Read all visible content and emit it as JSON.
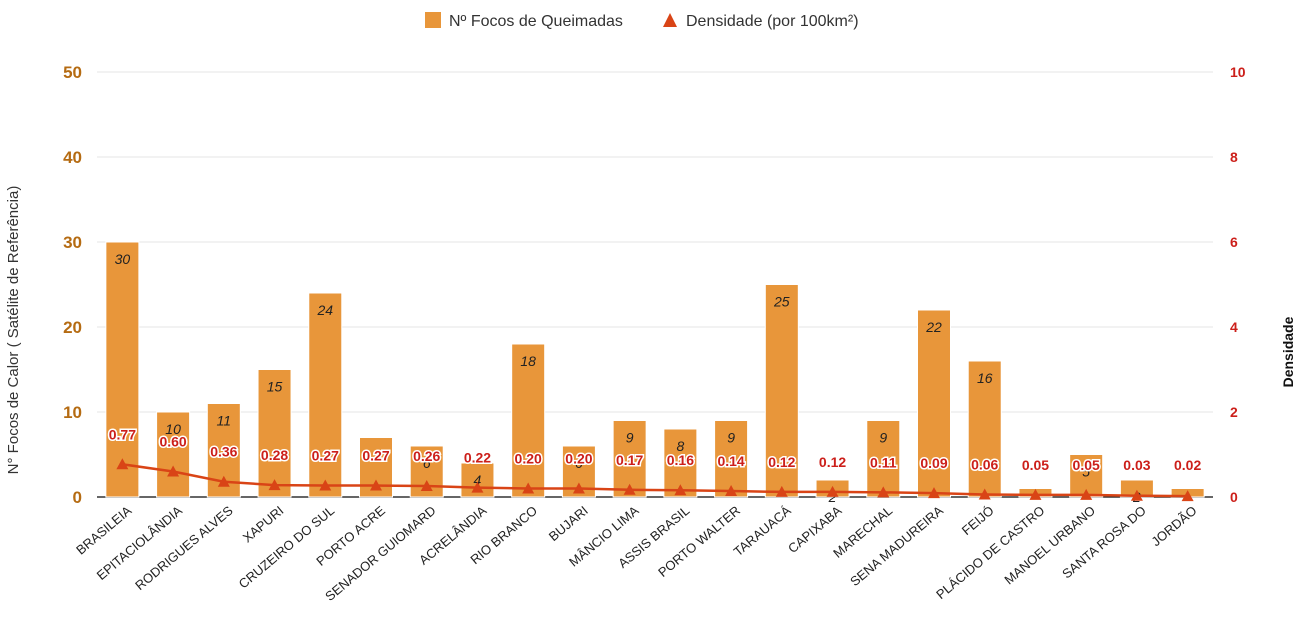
{
  "chart_data": {
    "type": "bar",
    "categories": [
      "BRASILEIA",
      "EPITACIOLÂNDIA",
      "RODRIGUES ALVES",
      "XAPURI",
      "CRUZEIRO DO SUL",
      "PORTO ACRE",
      "SENADOR GUIOMARD",
      "ACRELÂNDIA",
      "RIO BRANCO",
      "BUJARI",
      "MÂNCIO LIMA",
      "ASSIS BRASIL",
      "PORTO WALTER",
      "TARAUACÁ",
      "CAPIXABA",
      "MARECHAL",
      "SENA MADUREIRA",
      "FEIJÓ",
      "PLÁCIDO DE CASTRO",
      "MANOEL URBANO",
      "SANTA ROSA DO",
      "JORDÃO"
    ],
    "series": [
      {
        "name": "Nº Focos de Queimadas",
        "kind": "bar",
        "axis": "left",
        "color": "#e8963a",
        "values": [
          30,
          10,
          11,
          15,
          24,
          7,
          6,
          4,
          18,
          6,
          9,
          8,
          9,
          25,
          2,
          9,
          22,
          16,
          1,
          5,
          2,
          1
        ],
        "labels": [
          "30",
          "10",
          "11",
          "15",
          "24",
          "",
          "6",
          "4",
          "18",
          "6",
          "9",
          "8",
          "9",
          "25",
          "2",
          "9",
          "22",
          "16",
          "",
          "5",
          "2",
          ""
        ]
      },
      {
        "name": "Densidade (por 100km²)",
        "kind": "line",
        "axis": "right",
        "color": "#d94416",
        "marker": "triangle",
        "values": [
          0.77,
          0.6,
          0.36,
          0.28,
          0.27,
          0.27,
          0.26,
          0.22,
          0.2,
          0.2,
          0.17,
          0.16,
          0.14,
          0.12,
          0.12,
          0.11,
          0.09,
          0.06,
          0.05,
          0.05,
          0.03,
          0.02
        ],
        "labels": [
          "0.77",
          "0.60",
          "0.36",
          "0.28",
          "0.27",
          "0.27",
          "0.26",
          "0.22",
          "0.20",
          "0.20",
          "0.17",
          "0.16",
          "0.14",
          "0.12",
          "0.12",
          "0.11",
          "0.09",
          "0.06",
          "0.05",
          "0.05",
          "0.03",
          "0.02"
        ]
      }
    ],
    "y_left": {
      "label": "N° Focos de Calor ( Satélite de Referência)",
      "range": [
        0,
        50
      ],
      "ticks": [
        "0",
        "10",
        "20",
        "30",
        "40",
        "50"
      ]
    },
    "y_right": {
      "label": "Densidade",
      "range": [
        0,
        10
      ],
      "ticks": [
        "0",
        "2",
        "4",
        "6",
        "8",
        "10"
      ]
    },
    "grid": true,
    "legend_position": "top-center",
    "colors": {
      "left_axis": "#b56b12",
      "right_axis": "#cc1f1a",
      "grid": "#e6e6e6"
    }
  }
}
